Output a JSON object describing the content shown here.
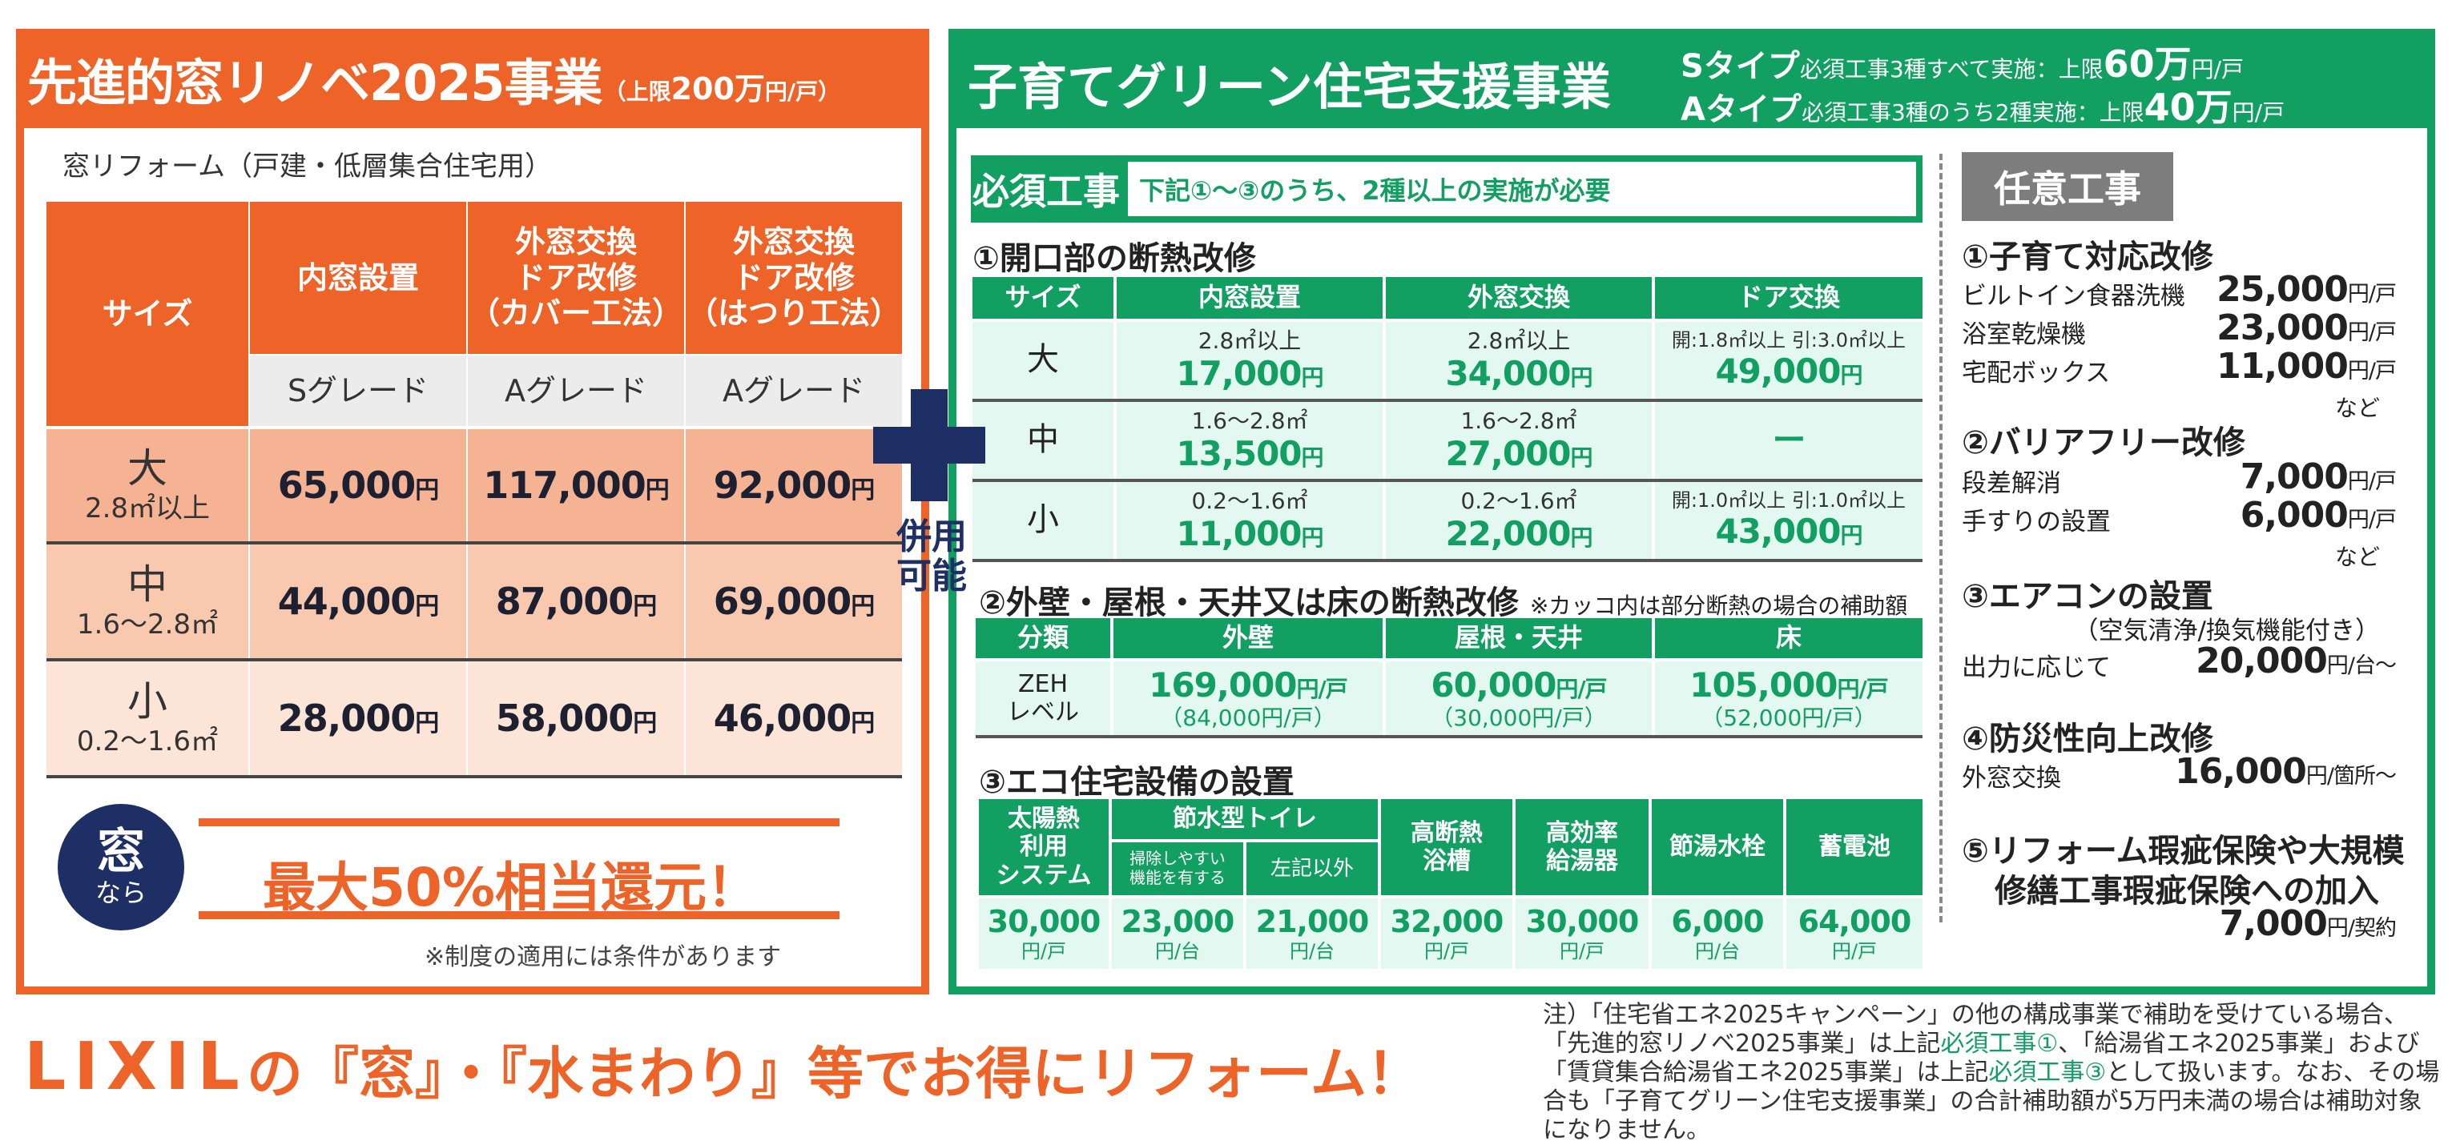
{
  "left": {
    "title": "先進的窓リノベ2025事業",
    "limit_pre": "（上限",
    "limit_amount": "200万",
    "limit_unit": "円/戸）",
    "subtitle": "窓リフォーム（戸建・低層集合住宅用）",
    "headers": {
      "size": "サイズ",
      "col1": "内窓設置",
      "col2": [
        "外窓交換",
        "ドア改修",
        "（カバー工法）"
      ],
      "col3": [
        "外窓交換",
        "ドア改修",
        "（はつり工法）"
      ]
    },
    "grades": [
      "Sグレード",
      "Aグレード",
      "Aグレード"
    ],
    "rows": [
      {
        "size": "大",
        "range": "2.8㎡以上",
        "values": [
          "65,000",
          "117,000",
          "92,000"
        ]
      },
      {
        "size": "中",
        "range": "1.6～2.8㎡",
        "values": [
          "44,000",
          "87,000",
          "69,000"
        ]
      },
      {
        "size": "小",
        "range": "0.2～1.6㎡",
        "values": [
          "28,000",
          "58,000",
          "46,000"
        ]
      }
    ],
    "yen": "円",
    "badge_main": "窓",
    "badge_sub": "なら",
    "promo": "最大50%相当還元！",
    "note": "※制度の適用には条件があります"
  },
  "plus_label": [
    "併用",
    "可能"
  ],
  "right": {
    "title": "子育てグリーン住宅支援事業",
    "stype": {
      "name": "Sタイプ",
      "cond": "必須工事3種すべて実施",
      "colon": "：上限",
      "amount": "60万",
      "unit": "円/戸"
    },
    "atype": {
      "name": "Aタイプ",
      "cond": "必須工事3種のうち2種実施",
      "colon": "：上限",
      "amount": "40万",
      "unit": "円/戸"
    },
    "hissu_label": "必須工事",
    "hissu_note": "下記①～③のうち、2種以上の実施が必要",
    "sec1": {
      "title": "①開口部の断熱改修",
      "headers": [
        "サイズ",
        "内窓設置",
        "外窓交換",
        "ドア交換"
      ],
      "rows": [
        {
          "size": "大",
          "c1_area": "2.8㎡以上",
          "c1_val": "17,000",
          "c2_area": "2.8㎡以上",
          "c2_val": "34,000",
          "c3_area": "開:1.8㎡以上 引:3.0㎡以上",
          "c3_val": "49,000"
        },
        {
          "size": "中",
          "c1_area": "1.6～2.8㎡",
          "c1_val": "13,500",
          "c2_area": "1.6～2.8㎡",
          "c2_val": "27,000",
          "c3_area": "",
          "c3_val": "ー"
        },
        {
          "size": "小",
          "c1_area": "0.2～1.6㎡",
          "c1_val": "11,000",
          "c2_area": "0.2～1.6㎡",
          "c2_val": "22,000",
          "c3_area": "開:1.0㎡以上 引:1.0㎡以上",
          "c3_val": "43,000"
        }
      ]
    },
    "sec2": {
      "title": "②外壁・屋根・天井又は床の断熱改修",
      "note": "※カッコ内は部分断熱の場合の補助額",
      "headers": [
        "分類",
        "外壁",
        "屋根・天井",
        "床"
      ],
      "cat": [
        "ZEH",
        "レベル"
      ],
      "values": [
        {
          "main": "169,000",
          "sub": "（84,000円/戸）"
        },
        {
          "main": "60,000",
          "sub": "（30,000円/戸）"
        },
        {
          "main": "105,000",
          "sub": "（52,000円/戸）"
        }
      ],
      "unit": "円/戸"
    },
    "sec3": {
      "title": "③エコ住宅設備の設置",
      "h_solar": [
        "太陽熱",
        "利用",
        "システム"
      ],
      "h_toilet": "節水型トイレ",
      "h_toilet_a": [
        "掃除しやすい",
        "機能を有する"
      ],
      "h_toilet_b": "左記以外",
      "h_bath": [
        "高断熱",
        "浴槽"
      ],
      "h_heater": [
        "高効率",
        "給湯器"
      ],
      "h_faucet": "節湯水栓",
      "h_battery": "蓄電池",
      "values": [
        {
          "v": "30,000",
          "u": "円/戸"
        },
        {
          "v": "23,000",
          "u": "円/台"
        },
        {
          "v": "21,000",
          "u": "円/台"
        },
        {
          "v": "32,000",
          "u": "円/戸"
        },
        {
          "v": "30,000",
          "u": "円/戸"
        },
        {
          "v": "6,000",
          "u": "円/台"
        },
        {
          "v": "64,000",
          "u": "円/戸"
        }
      ]
    },
    "optional": {
      "label": "任意工事",
      "s1": {
        "title": "①子育て対応改修",
        "items": [
          {
            "name": "ビルトイン食器洗機",
            "price": "25,000",
            "unit": "円/戸"
          },
          {
            "name": "浴室乾燥機",
            "price": "23,000",
            "unit": "円/戸"
          },
          {
            "name": "宅配ボックス",
            "price": "11,000",
            "unit": "円/戸"
          }
        ],
        "etc": "など"
      },
      "s2": {
        "title": "②バリアフリー改修",
        "items": [
          {
            "name": "段差解消",
            "price": "7,000",
            "unit": "円/戸"
          },
          {
            "name": "手すりの設置",
            "price": "6,000",
            "unit": "円/戸"
          }
        ],
        "etc": "など"
      },
      "s3": {
        "title": "③エアコンの設置",
        "sub": "（空気清浄/換気機能付き）",
        "name": "出力に応じて",
        "price": "20,000",
        "unit": "円/台～"
      },
      "s4": {
        "title": "④防災性向上改修",
        "name": "外窓交換",
        "price": "16,000",
        "unit": "円/箇所～"
      },
      "s5": {
        "title1": "⑤リフォーム瑕疵保険や大規模",
        "title2": "修繕工事瑕疵保険への加入",
        "price": "7,000",
        "unit": "円/契約"
      }
    }
  },
  "footer": {
    "logo": "LIXIL",
    "tagline": "の『窓』・『水まわり』等でお得にリフォーム！",
    "note_1": "注）「住宅省エネ2025キャンペーン」の他の構成事業で補助を受けている場合、「先進的窓リノベ2025事業」は上記",
    "note_hl1": "必須工事①",
    "note_2": "、「給湯省エネ2025事業」および「賃貸集合給湯省エネ2025事業」は上記",
    "note_hl2": "必須工事③",
    "note_3": "として扱います。なお、その場合も「子育てグリーン住宅支援事業」の合計補助額が5万円未満の場合は補助対象になりません。"
  },
  "colors": {
    "orange": "#ee6428",
    "green": "#129f62",
    "navy": "#1e2f66"
  }
}
